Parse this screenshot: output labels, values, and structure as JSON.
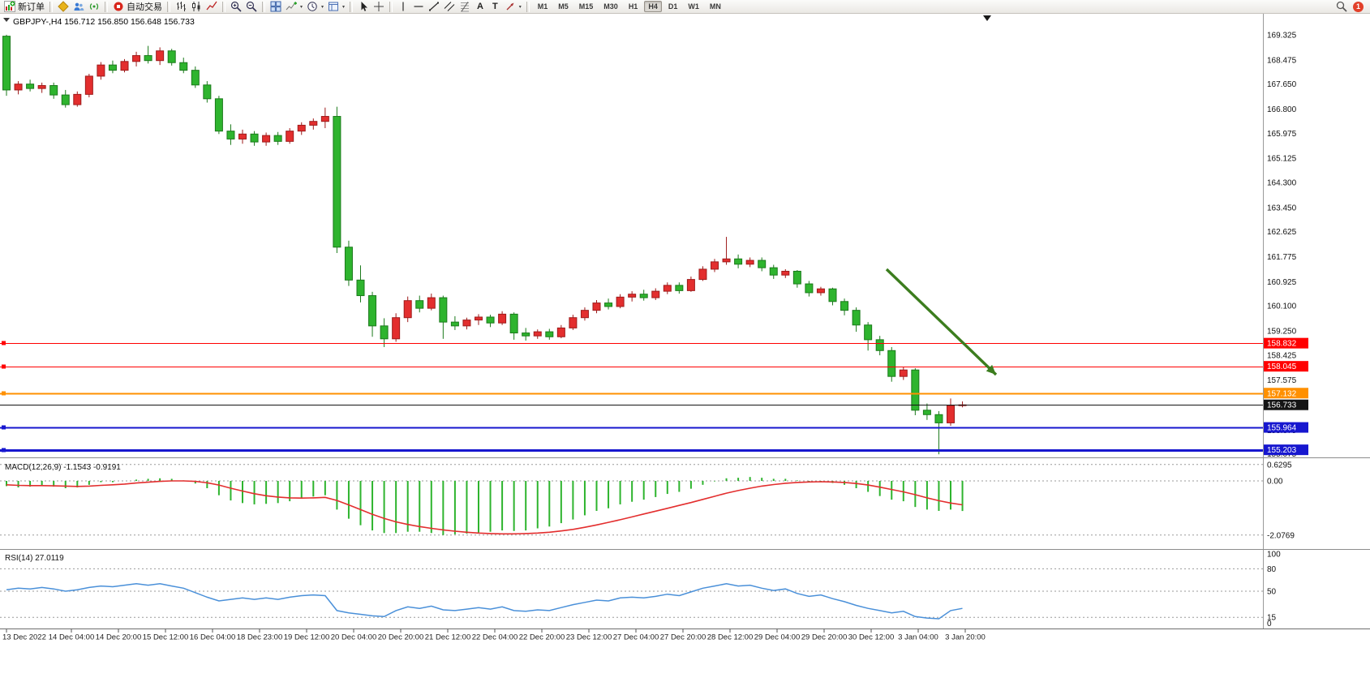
{
  "toolbar": {
    "new_order": "新订单",
    "autotrade": "自动交易",
    "text_tool": "A",
    "label_tool": "T",
    "timeframes": [
      "M1",
      "M5",
      "M15",
      "M30",
      "H1",
      "H4",
      "D1",
      "W1",
      "MN"
    ],
    "active_timeframe": "H4",
    "notification_count": "1"
  },
  "chart_data": {
    "type": "candlestick",
    "symbol": "GBPJPY-",
    "timeframe": "H4",
    "symbol_title": "GBPJPY-,H4 156.712 156.850 156.648 156.733",
    "current_bar": {
      "open": 156.712,
      "high": 156.85,
      "low": 156.648,
      "close": 156.733
    },
    "up_color": "#e32e2e",
    "up_stroke": "#9e1b1b",
    "down_color": "#2eb42e",
    "down_stroke": "#1b7a1b",
    "price_axis_labels": [
      "169.325",
      "168.475",
      "167.650",
      "166.800",
      "165.975",
      "165.125",
      "164.300",
      "163.450",
      "162.625",
      "161.775",
      "160.925",
      "160.100",
      "159.250",
      "158.425",
      "157.575",
      "156.725",
      "155.875",
      "155.075"
    ],
    "price_lines": [
      {
        "label": "158.832",
        "color": "#ff0000",
        "width": 1.4,
        "handle": true
      },
      {
        "label": "158.045",
        "color": "#ff0000",
        "width": 1.4,
        "handle": true
      },
      {
        "label": "157.132",
        "color": "#ff9000",
        "width": 1.8,
        "handle": true
      },
      {
        "label": "156.733",
        "color": "#141414",
        "width": 1,
        "handle": false
      },
      {
        "label": "155.964",
        "color": "#1717cf",
        "width": 2,
        "handle": true
      },
      {
        "label": "155.203",
        "color": "#1717cf",
        "width": 2.6,
        "handle": true
      }
    ],
    "candles": [
      [
        169.28,
        169.33,
        167.25,
        167.45
      ],
      [
        167.45,
        167.75,
        167.3,
        167.65
      ],
      [
        167.65,
        167.8,
        167.4,
        167.5
      ],
      [
        167.5,
        167.7,
        167.35,
        167.6
      ],
      [
        167.6,
        167.7,
        167.15,
        167.28
      ],
      [
        167.28,
        167.45,
        166.85,
        166.95
      ],
      [
        166.95,
        167.4,
        166.88,
        167.3
      ],
      [
        167.3,
        168.0,
        167.2,
        167.92
      ],
      [
        167.92,
        168.4,
        167.8,
        168.3
      ],
      [
        168.3,
        168.45,
        168.02,
        168.12
      ],
      [
        168.12,
        168.5,
        168.05,
        168.42
      ],
      [
        168.42,
        168.75,
        168.25,
        168.62
      ],
      [
        168.62,
        168.95,
        168.35,
        168.45
      ],
      [
        168.45,
        168.9,
        168.3,
        168.78
      ],
      [
        168.78,
        168.85,
        168.28,
        168.38
      ],
      [
        168.38,
        168.55,
        168.02,
        168.12
      ],
      [
        168.12,
        168.25,
        167.52,
        167.62
      ],
      [
        167.62,
        167.75,
        167.02,
        167.15
      ],
      [
        167.15,
        167.25,
        165.95,
        166.05
      ],
      [
        166.05,
        166.28,
        165.58,
        165.78
      ],
      [
        165.78,
        166.1,
        165.62,
        165.95
      ],
      [
        165.95,
        166.05,
        165.55,
        165.68
      ],
      [
        165.68,
        166.0,
        165.55,
        165.9
      ],
      [
        165.9,
        166.02,
        165.58,
        165.7
      ],
      [
        165.7,
        166.15,
        165.62,
        166.05
      ],
      [
        166.05,
        166.35,
        165.92,
        166.25
      ],
      [
        166.25,
        166.48,
        166.1,
        166.38
      ],
      [
        166.38,
        166.85,
        166.15,
        166.55
      ],
      [
        166.55,
        166.88,
        161.9,
        162.1
      ],
      [
        162.1,
        162.32,
        160.78,
        160.98
      ],
      [
        160.98,
        161.48,
        160.22,
        160.45
      ],
      [
        160.45,
        160.58,
        159.05,
        159.42
      ],
      [
        159.42,
        159.68,
        158.7,
        158.98
      ],
      [
        158.98,
        159.85,
        158.88,
        159.7
      ],
      [
        159.7,
        160.42,
        159.55,
        160.28
      ],
      [
        160.28,
        160.45,
        159.88,
        160.02
      ],
      [
        160.02,
        160.52,
        159.95,
        160.38
      ],
      [
        160.38,
        160.45,
        158.98,
        159.55
      ],
      [
        159.55,
        159.75,
        159.28,
        159.42
      ],
      [
        159.42,
        159.7,
        159.3,
        159.62
      ],
      [
        159.62,
        159.82,
        159.45,
        159.72
      ],
      [
        159.72,
        159.8,
        159.38,
        159.52
      ],
      [
        159.52,
        159.92,
        159.45,
        159.82
      ],
      [
        159.82,
        159.88,
        158.95,
        159.18
      ],
      [
        159.18,
        159.35,
        158.92,
        159.08
      ],
      [
        159.08,
        159.3,
        158.98,
        159.22
      ],
      [
        159.22,
        159.32,
        158.95,
        159.05
      ],
      [
        159.05,
        159.45,
        159.0,
        159.35
      ],
      [
        159.35,
        159.8,
        159.28,
        159.7
      ],
      [
        159.7,
        160.05,
        159.6,
        159.95
      ],
      [
        159.95,
        160.3,
        159.85,
        160.2
      ],
      [
        160.2,
        160.35,
        159.98,
        160.08
      ],
      [
        160.08,
        160.5,
        160.02,
        160.4
      ],
      [
        160.4,
        160.6,
        160.25,
        160.5
      ],
      [
        160.5,
        160.65,
        160.28,
        160.38
      ],
      [
        160.38,
        160.7,
        160.3,
        160.6
      ],
      [
        160.6,
        160.9,
        160.5,
        160.8
      ],
      [
        160.8,
        160.9,
        160.52,
        160.62
      ],
      [
        160.62,
        161.1,
        160.58,
        161.0
      ],
      [
        161.0,
        161.45,
        160.95,
        161.35
      ],
      [
        161.35,
        161.7,
        161.25,
        161.6
      ],
      [
        161.6,
        162.45,
        161.5,
        161.7
      ],
      [
        161.7,
        161.85,
        161.38,
        161.52
      ],
      [
        161.52,
        161.75,
        161.42,
        161.65
      ],
      [
        161.65,
        161.75,
        161.28,
        161.4
      ],
      [
        161.4,
        161.5,
        161.02,
        161.15
      ],
      [
        161.15,
        161.35,
        161.05,
        161.28
      ],
      [
        161.28,
        161.32,
        160.72,
        160.85
      ],
      [
        160.85,
        160.95,
        160.42,
        160.55
      ],
      [
        160.55,
        160.75,
        160.45,
        160.68
      ],
      [
        160.68,
        160.72,
        160.12,
        160.25
      ],
      [
        160.25,
        160.35,
        159.78,
        159.95
      ],
      [
        159.95,
        160.05,
        159.22,
        159.45
      ],
      [
        159.45,
        159.55,
        158.58,
        158.95
      ],
      [
        158.95,
        159.08,
        158.42,
        158.58
      ],
      [
        158.58,
        158.7,
        157.52,
        157.7
      ],
      [
        157.7,
        158.02,
        157.58,
        157.92
      ],
      [
        157.92,
        157.98,
        156.38,
        156.55
      ],
      [
        156.55,
        156.78,
        156.22,
        156.4
      ],
      [
        156.4,
        156.52,
        155.05,
        156.12
      ],
      [
        156.12,
        156.95,
        156.02,
        156.71
      ],
      [
        156.712,
        156.85,
        156.648,
        156.733
      ]
    ],
    "time_labels": [
      "13 Dec 2022",
      "14 Dec 04:00",
      "14 Dec 20:00",
      "15 Dec 12:00",
      "16 Dec 04:00",
      "18 Dec 23:00",
      "19 Dec 12:00",
      "20 Dec 04:00",
      "20 Dec 20:00",
      "21 Dec 12:00",
      "22 Dec 04:00",
      "22 Dec 20:00",
      "23 Dec 12:00",
      "27 Dec 04:00",
      "27 Dec 20:00",
      "28 Dec 12:00",
      "29 Dec 04:00",
      "29 Dec 20:00",
      "30 Dec 12:00",
      "3 Jan 04:00",
      "3 Jan 20:00"
    ],
    "macd": {
      "label": "MACD(12,26,9)",
      "values_label": "-1.1543 -0.9191",
      "axis": [
        "0.6295",
        "0.00",
        "-2.0769"
      ],
      "hist_color": "#2eb42e",
      "signal_color": "#e32e2e",
      "histogram": [
        -0.2,
        -0.25,
        -0.22,
        -0.2,
        -0.22,
        -0.28,
        -0.25,
        -0.15,
        -0.05,
        -0.05,
        0.0,
        0.05,
        0.08,
        0.1,
        0.08,
        0.02,
        -0.1,
        -0.28,
        -0.55,
        -0.75,
        -0.85,
        -0.9,
        -0.88,
        -0.85,
        -0.78,
        -0.68,
        -0.6,
        -0.55,
        -1.1,
        -1.45,
        -1.7,
        -1.9,
        -2.0,
        -2.0,
        -1.95,
        -1.95,
        -2.0,
        -2.0769,
        -2.05,
        -2.02,
        -1.98,
        -1.95,
        -1.9,
        -1.92,
        -1.9,
        -1.82,
        -1.75,
        -1.62,
        -1.48,
        -1.32,
        -1.15,
        -1.05,
        -0.9,
        -0.8,
        -0.72,
        -0.62,
        -0.5,
        -0.42,
        -0.3,
        -0.15,
        -0.02,
        0.1,
        0.12,
        0.15,
        0.12,
        0.08,
        0.08,
        0.02,
        -0.02,
        -0.02,
        -0.08,
        -0.15,
        -0.28,
        -0.42,
        -0.58,
        -0.72,
        -0.78,
        -1.0,
        -1.1,
        -1.15,
        -1.1,
        -1.1543
      ],
      "signal": [
        -0.15,
        -0.17,
        -0.18,
        -0.18,
        -0.19,
        -0.2,
        -0.21,
        -0.2,
        -0.17,
        -0.15,
        -0.12,
        -0.08,
        -0.05,
        -0.02,
        0.0,
        0.0,
        -0.02,
        -0.07,
        -0.16,
        -0.28,
        -0.39,
        -0.49,
        -0.57,
        -0.62,
        -0.65,
        -0.66,
        -0.65,
        -0.63,
        -0.75,
        -0.92,
        -1.1,
        -1.28,
        -1.44,
        -1.57,
        -1.67,
        -1.75,
        -1.82,
        -1.88,
        -1.93,
        -1.97,
        -2.0,
        -2.02,
        -2.03,
        -2.03,
        -2.02,
        -2.0,
        -1.97,
        -1.92,
        -1.86,
        -1.78,
        -1.69,
        -1.59,
        -1.49,
        -1.38,
        -1.27,
        -1.16,
        -1.05,
        -0.94,
        -0.83,
        -0.71,
        -0.59,
        -0.47,
        -0.37,
        -0.28,
        -0.2,
        -0.14,
        -0.09,
        -0.06,
        -0.04,
        -0.03,
        -0.04,
        -0.06,
        -0.1,
        -0.16,
        -0.24,
        -0.33,
        -0.42,
        -0.53,
        -0.65,
        -0.76,
        -0.85,
        -0.9191
      ]
    },
    "rsi": {
      "label": "RSI(14)",
      "value_label": "27.0119",
      "axis": [
        100,
        80,
        50,
        15,
        0
      ],
      "levels": [
        80,
        50,
        15
      ],
      "color": "#4a90d9",
      "values": [
        52,
        54,
        53,
        55,
        53,
        50,
        52,
        55,
        57,
        56,
        58,
        60,
        58,
        60,
        57,
        54,
        48,
        42,
        37,
        39,
        41,
        39,
        41,
        39,
        42,
        44,
        45,
        44,
        24,
        21,
        19,
        17,
        16,
        24,
        29,
        27,
        30,
        25,
        24,
        26,
        28,
        26,
        29,
        24,
        23,
        25,
        24,
        28,
        32,
        35,
        38,
        37,
        41,
        42,
        41,
        43,
        46,
        44,
        49,
        54,
        57,
        60,
        57,
        58,
        54,
        51,
        53,
        47,
        43,
        45,
        40,
        36,
        31,
        27,
        24,
        21,
        23,
        16,
        14,
        13,
        24,
        27.01
      ]
    },
    "arrow": {
      "from": [
        1093,
        315
      ],
      "to": [
        1228,
        445
      ],
      "color": "#3c7d1e"
    }
  }
}
